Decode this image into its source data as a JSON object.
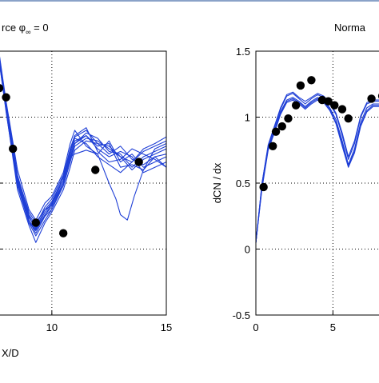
{
  "chart_data": [
    {
      "type": "line",
      "title": "rce φ",
      "title_sub": "∞",
      "title_tail": " = 0",
      "xlabel": "X/D",
      "x_ticks": [
        10,
        15
      ],
      "xlim": [
        7.7,
        15
      ],
      "ylim": [
        -0.5,
        1.5
      ],
      "grid": true,
      "series_color": "#1f3fd6",
      "series": [
        {
          "x": [
            7.7,
            8.0,
            8.5,
            9.0,
            9.3,
            9.7,
            10.0,
            10.5,
            10.8,
            11.0,
            11.5,
            12.0,
            12.5,
            13.0,
            13.5,
            14.0,
            14.5,
            15.0
          ],
          "y": [
            1.46,
            1.1,
            0.55,
            0.28,
            0.2,
            0.3,
            0.33,
            0.55,
            0.75,
            0.85,
            0.9,
            0.8,
            0.78,
            0.7,
            0.66,
            0.76,
            0.8,
            0.85
          ]
        },
        {
          "x": [
            7.7,
            8.0,
            8.5,
            9.0,
            9.3,
            9.7,
            10.0,
            10.5,
            10.8,
            11.0,
            11.5,
            12.0,
            12.5,
            13.0,
            13.5,
            14.0,
            14.5,
            15.0
          ],
          "y": [
            1.44,
            1.08,
            0.5,
            0.22,
            0.12,
            0.25,
            0.3,
            0.5,
            0.7,
            0.8,
            0.88,
            0.84,
            0.74,
            0.72,
            0.62,
            0.7,
            0.74,
            0.78
          ]
        },
        {
          "x": [
            7.7,
            8.0,
            8.5,
            9.0,
            9.3,
            9.7,
            10.0,
            10.5,
            10.8,
            11.0,
            11.5,
            12.0,
            12.5,
            13.0,
            13.5,
            14.0,
            14.5,
            15.0
          ],
          "y": [
            1.42,
            1.05,
            0.45,
            0.18,
            0.05,
            0.2,
            0.28,
            0.45,
            0.62,
            0.75,
            0.82,
            0.8,
            0.72,
            0.78,
            0.68,
            0.64,
            0.7,
            0.72
          ]
        },
        {
          "x": [
            7.7,
            8.0,
            8.5,
            9.0,
            9.3,
            9.7,
            10.0,
            10.5,
            10.8,
            11.0,
            11.5,
            12.0,
            12.5,
            13.0,
            13.5,
            14.0,
            14.5,
            15.0
          ],
          "y": [
            1.48,
            1.12,
            0.6,
            0.3,
            0.22,
            0.35,
            0.4,
            0.58,
            0.8,
            0.9,
            0.78,
            0.72,
            0.82,
            0.66,
            0.72,
            0.62,
            0.66,
            0.7
          ]
        },
        {
          "x": [
            7.7,
            8.0,
            8.5,
            9.0,
            9.3,
            9.7,
            10.0,
            10.5,
            10.8,
            11.0,
            11.5,
            12.0,
            12.5,
            13.0,
            13.5,
            14.0,
            14.5,
            15.0
          ],
          "y": [
            1.45,
            1.06,
            0.52,
            0.25,
            0.15,
            0.28,
            0.35,
            0.52,
            0.72,
            0.82,
            0.86,
            0.76,
            0.7,
            0.74,
            0.7,
            0.58,
            0.62,
            0.66
          ]
        },
        {
          "x": [
            7.7,
            8.0,
            8.5,
            9.0,
            9.3,
            9.7,
            10.0,
            10.5,
            10.8,
            11.0,
            11.5,
            12.0,
            12.5,
            13.0,
            13.5,
            14.0,
            14.5,
            15.0
          ],
          "y": [
            1.43,
            1.04,
            0.48,
            0.2,
            0.1,
            0.22,
            0.3,
            0.48,
            0.66,
            0.78,
            0.84,
            0.82,
            0.76,
            0.7,
            0.6,
            0.68,
            0.72,
            0.76
          ]
        },
        {
          "x": [
            7.7,
            8.0,
            8.5,
            9.0,
            9.3,
            9.7,
            10.0,
            10.5,
            10.8,
            11.0,
            11.5,
            12.0,
            12.5,
            13.0,
            13.5,
            14.0,
            14.5,
            15.0
          ],
          "y": [
            1.47,
            1.1,
            0.56,
            0.26,
            0.18,
            0.32,
            0.38,
            0.56,
            0.76,
            0.86,
            0.92,
            0.74,
            0.66,
            0.68,
            0.76,
            0.72,
            0.68,
            0.62
          ]
        },
        {
          "x": [
            7.7,
            8.0,
            8.5,
            9.0,
            9.3,
            9.7,
            10.0,
            10.5,
            10.8,
            11.0,
            11.5,
            12.0,
            12.5,
            13.0,
            13.5,
            14.0,
            14.5,
            15.0
          ],
          "y": [
            1.44,
            1.07,
            0.5,
            0.2,
            0.14,
            0.26,
            0.32,
            0.5,
            0.68,
            0.8,
            0.86,
            0.78,
            0.8,
            0.62,
            0.64,
            0.6,
            0.76,
            0.8
          ]
        },
        {
          "x": [
            7.7,
            8.0,
            8.5,
            9.0,
            9.3,
            9.7,
            10.0,
            10.5,
            10.8,
            11.0,
            11.5,
            12.0,
            12.5,
            13.0,
            13.5,
            14.0,
            14.5,
            15.0
          ],
          "y": [
            1.46,
            1.09,
            0.54,
            0.24,
            0.16,
            0.3,
            0.36,
            0.54,
            0.74,
            0.84,
            0.8,
            0.7,
            0.64,
            0.58,
            0.66,
            0.74,
            0.78,
            0.82
          ]
        },
        {
          "x": [
            7.7,
            8.0,
            8.5,
            9.0,
            9.3,
            9.7,
            10.0,
            10.5,
            10.8,
            11.0,
            11.5,
            12.0,
            12.5,
            12.8,
            13.0,
            13.3,
            13.6,
            14.0,
            14.5,
            15.0
          ],
          "y": [
            1.45,
            1.08,
            0.52,
            0.22,
            0.14,
            0.26,
            0.34,
            0.5,
            0.7,
            0.72,
            0.75,
            0.72,
            0.5,
            0.38,
            0.26,
            0.22,
            0.4,
            0.6,
            0.7,
            0.62
          ]
        }
      ],
      "markers": {
        "x": [
          7.7,
          8.0,
          8.3,
          9.3,
          10.5,
          11.9,
          13.8
        ],
        "y": [
          1.22,
          1.15,
          0.76,
          0.2,
          0.12,
          0.6,
          0.66
        ]
      }
    },
    {
      "type": "line",
      "title": "Norma",
      "ylabel": "dCN / dx",
      "x_ticks": [
        0,
        5
      ],
      "y_ticks": [
        -0.5,
        0,
        0.5,
        1,
        1.5
      ],
      "xlim": [
        0,
        8.3
      ],
      "ylim": [
        -0.5,
        1.5
      ],
      "grid": true,
      "series_color": "#1f3fd6",
      "series": [
        {
          "x": [
            0,
            0.4,
            0.8,
            1.2,
            1.6,
            2.0,
            2.4,
            2.8,
            3.2,
            3.6,
            4.0,
            4.4,
            4.8,
            5.2,
            5.6,
            6.0,
            6.4,
            6.8,
            7.2,
            7.6,
            8.0,
            8.3
          ],
          "y": [
            0.05,
            0.5,
            0.78,
            0.92,
            1.06,
            1.16,
            1.18,
            1.14,
            1.1,
            1.14,
            1.17,
            1.15,
            1.1,
            1.02,
            0.86,
            0.68,
            0.8,
            1.0,
            1.1,
            1.12,
            1.12,
            1.14
          ]
        },
        {
          "x": [
            0,
            0.4,
            0.8,
            1.2,
            1.6,
            2.0,
            2.4,
            2.8,
            3.2,
            3.6,
            4.0,
            4.4,
            4.8,
            5.2,
            5.6,
            6.0,
            6.4,
            6.8,
            7.2,
            7.6,
            8.0,
            8.3
          ],
          "y": [
            0.05,
            0.48,
            0.76,
            0.9,
            1.04,
            1.13,
            1.15,
            1.12,
            1.08,
            1.12,
            1.15,
            1.13,
            1.07,
            0.98,
            0.82,
            0.64,
            0.76,
            0.96,
            1.07,
            1.1,
            1.1,
            1.12
          ]
        },
        {
          "x": [
            0,
            0.4,
            0.8,
            1.2,
            1.6,
            2.0,
            2.4,
            2.8,
            3.2,
            3.6,
            4.0,
            4.4,
            4.8,
            5.2,
            5.6,
            6.0,
            6.4,
            6.8,
            7.2,
            7.6,
            8.0,
            8.3
          ],
          "y": [
            0.05,
            0.46,
            0.75,
            0.88,
            1.02,
            1.11,
            1.13,
            1.1,
            1.06,
            1.1,
            1.13,
            1.11,
            1.05,
            0.95,
            0.78,
            0.62,
            0.73,
            0.93,
            1.04,
            1.08,
            1.08,
            1.1
          ]
        },
        {
          "x": [
            0,
            0.4,
            0.8,
            1.2,
            1.6,
            2.0,
            2.4,
            2.8,
            3.2,
            3.6,
            4.0,
            4.4,
            4.8,
            5.2,
            5.6,
            6.0,
            6.4,
            6.8,
            7.2,
            7.6,
            8.0,
            8.3
          ],
          "y": [
            0.05,
            0.5,
            0.79,
            0.93,
            1.07,
            1.17,
            1.19,
            1.15,
            1.12,
            1.15,
            1.18,
            1.16,
            1.11,
            1.03,
            0.88,
            0.7,
            0.82,
            1.01,
            1.11,
            1.13,
            1.13,
            1.15
          ]
        },
        {
          "x": [
            0,
            0.4,
            0.8,
            1.2,
            1.6,
            2.0,
            2.4,
            2.8,
            3.2,
            3.6,
            4.0,
            4.4,
            4.8,
            5.2,
            5.6,
            6.0,
            6.4,
            6.8,
            7.2,
            7.6,
            8.0,
            8.3
          ],
          "y": [
            0.05,
            0.47,
            0.77,
            0.89,
            1.03,
            1.12,
            1.14,
            1.11,
            1.07,
            1.11,
            1.14,
            1.12,
            1.06,
            0.96,
            0.8,
            0.63,
            0.74,
            0.94,
            1.05,
            1.09,
            1.09,
            1.11
          ]
        }
      ],
      "markers": {
        "x": [
          0.5,
          1.1,
          1.3,
          1.7,
          2.1,
          2.6,
          2.9,
          3.6,
          4.3,
          4.7,
          5.1,
          5.6,
          6.0,
          7.5,
          8.2
        ],
        "y": [
          0.47,
          0.78,
          0.89,
          0.93,
          0.99,
          1.09,
          1.24,
          1.28,
          1.13,
          1.12,
          1.09,
          1.06,
          0.99,
          1.14,
          1.16
        ]
      }
    }
  ]
}
